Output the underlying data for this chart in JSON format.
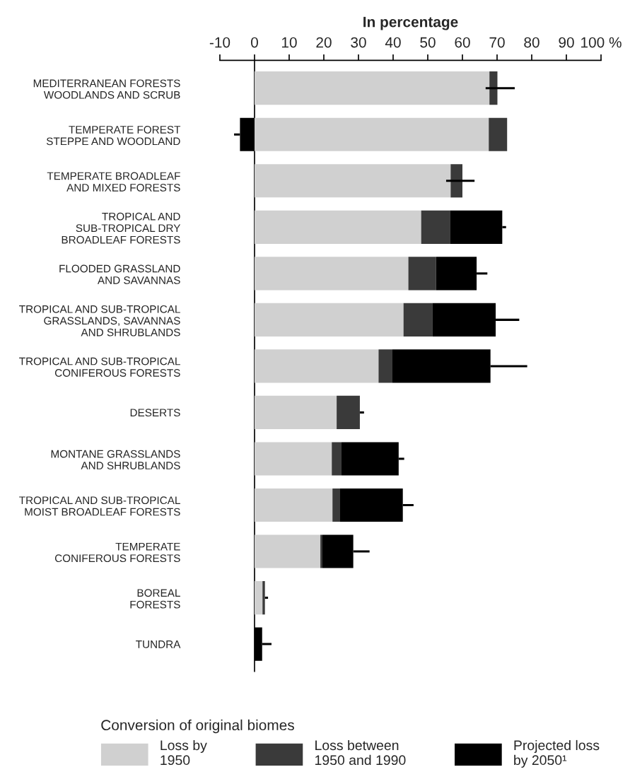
{
  "chart_data": {
    "type": "bar",
    "orientation": "horizontal",
    "stacked": true,
    "xlabel": "In percentage",
    "categories": [
      "MEDITERRANEAN FORESTS\nWOODLANDS AND SCRUB",
      "TEMPERATE FOREST\nSTEPPE AND WOODLAND",
      "TEMPERATE BROADLEAF\nAND MIXED FORESTS",
      "TROPICAL AND\nSUB-TROPICAL DRY\nBROADLEAF FORESTS",
      "FLOODED GRASSLAND\nAND SAVANNAS",
      "TROPICAL AND SUB-TROPICAL\nGRASSLANDS, SAVANNAS\nAND SHRUBLANDS",
      "TROPICAL AND SUB-TROPICAL\nCONIFEROUS FORESTS",
      "DESERTS",
      "MONTANE GRASSLANDS\nAND SHRUBLANDS",
      "TROPICAL AND SUB-TROPICAL\nMOIST BROADLEAF FORESTS",
      "TEMPERATE\nCONIFEROUS FORESTS",
      "BOREAL\nFORESTS",
      "TUNDRA"
    ],
    "series": [
      {
        "name": "Loss by\n1950",
        "color": "#d0d0d0",
        "values": [
          67.8,
          67.6,
          56.6,
          48.1,
          44.4,
          43.0,
          35.8,
          23.7,
          22.3,
          22.5,
          19.0,
          2.3,
          0
        ]
      },
      {
        "name": "Loss between\n1950 and 1990",
        "color": "#3a3a3a",
        "values": [
          2.3,
          5.3,
          3.4,
          8.3,
          8.0,
          8.3,
          4.0,
          6.7,
          2.8,
          2.2,
          0.6,
          0.7,
          0
        ]
      },
      {
        "name": "Projected loss\nby 2050¹",
        "color": "#000000",
        "values": [
          0,
          -4.2,
          0,
          15.1,
          11.7,
          18.3,
          28.3,
          0,
          16.5,
          18.1,
          8.9,
          0,
          2.2
        ],
        "errors": [
          [
            66.7,
            75.1
          ],
          [
            -5.9,
            -4.2
          ],
          [
            55.3,
            63.5
          ],
          [
            71.5,
            72.6
          ],
          [
            64.1,
            67.2
          ],
          [
            69.6,
            76.4
          ],
          [
            68.1,
            78.7
          ],
          [
            30.4,
            31.6
          ],
          [
            41.6,
            43.2
          ],
          [
            42.8,
            45.9
          ],
          [
            28.5,
            33.2
          ],
          [
            3.0,
            3.9
          ],
          [
            2.2,
            4.9
          ]
        ]
      }
    ],
    "xlim": [
      -10,
      100
    ],
    "xticks": [
      -10,
      0,
      10,
      20,
      30,
      40,
      50,
      60,
      70,
      80,
      90,
      {
        "value": 100,
        "label": "100 %"
      }
    ],
    "ref_lines": [
      {
        "axis": "x",
        "value": 0,
        "color": "#000000"
      }
    ],
    "legend_title": "Conversion of original biomes",
    "legend": "bottom",
    "grid": false
  }
}
